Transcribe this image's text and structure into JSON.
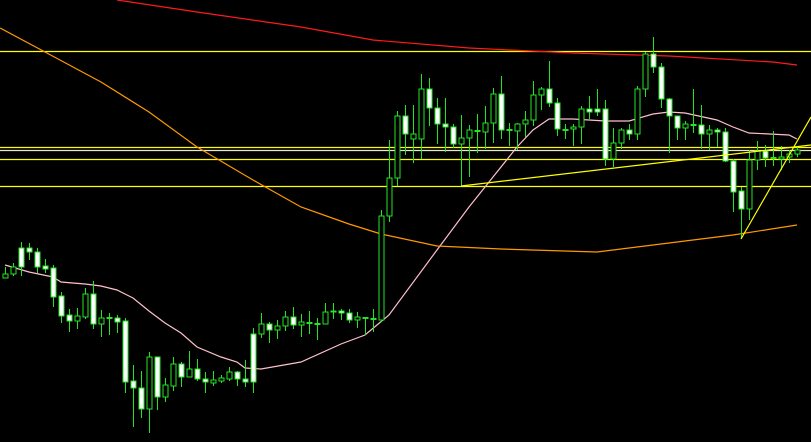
{
  "chart_data": {
    "type": "candlestick",
    "title": "",
    "xlabel": "",
    "ylabel": "",
    "grid": false,
    "ylim": [
      0,
      442
    ],
    "colors": {
      "background": "#000000",
      "candle_outline": "#22e622",
      "bear_body": "#ffffff",
      "bull_body": "#000000",
      "ma_fast": "#ffc0cb",
      "ma_slow": "#ff9900",
      "ma_long": "#ff1a1a",
      "levels": "#ffff00",
      "level_light": "#e8e8c8",
      "trendlines": "#ffff00"
    },
    "candles_ohlc": [
      [
        164,
        175,
        164,
        168
      ],
      [
        168,
        179,
        166,
        175
      ],
      [
        194,
        200,
        166,
        175
      ],
      [
        194,
        199,
        182,
        190
      ],
      [
        190,
        194,
        169,
        175
      ],
      [
        176,
        183,
        169,
        173
      ],
      [
        174,
        177,
        135,
        145
      ],
      [
        146,
        150,
        119,
        126
      ],
      [
        127,
        133,
        110,
        121
      ],
      [
        121,
        134,
        113,
        126
      ],
      [
        125,
        154,
        123,
        148
      ],
      [
        148,
        161,
        113,
        118
      ],
      [
        118,
        132,
        105,
        124
      ],
      [
        124,
        129,
        107,
        124
      ],
      [
        124,
        127,
        109,
        120
      ],
      [
        121,
        124,
        49,
        60
      ],
      [
        61,
        77,
        15,
        54
      ],
      [
        54,
        71,
        24,
        33
      ],
      [
        33,
        90,
        9,
        85
      ],
      [
        85,
        85,
        32,
        45
      ],
      [
        45,
        64,
        40,
        57
      ],
      [
        56,
        85,
        51,
        78
      ],
      [
        78,
        80,
        55,
        65
      ],
      [
        65,
        91,
        65,
        73
      ],
      [
        73,
        83,
        61,
        63
      ],
      [
        63,
        70,
        49,
        60
      ],
      [
        59,
        71,
        56,
        62
      ],
      [
        61,
        67,
        59,
        64
      ],
      [
        63,
        75,
        61,
        70
      ],
      [
        70,
        71,
        56,
        63
      ],
      [
        63,
        82,
        55,
        60
      ],
      [
        108,
        114,
        49,
        60
      ],
      [
        108,
        129,
        104,
        118
      ],
      [
        118,
        120,
        99,
        112
      ],
      [
        112,
        122,
        103,
        116
      ],
      [
        116,
        131,
        111,
        125
      ],
      [
        125,
        135,
        113,
        117
      ],
      [
        117,
        128,
        105,
        120
      ],
      [
        119,
        131,
        108,
        119
      ],
      [
        118,
        124,
        102,
        118
      ],
      [
        118,
        139,
        118,
        130
      ],
      [
        130,
        139,
        123,
        131
      ],
      [
        131,
        133,
        122,
        129
      ],
      [
        129,
        133,
        119,
        122
      ],
      [
        122,
        130,
        114,
        125
      ],
      [
        124,
        124,
        107,
        124
      ],
      [
        123,
        133,
        110,
        123
      ],
      [
        122,
        232,
        120,
        226
      ],
      [
        226,
        302,
        220,
        264
      ],
      [
        264,
        331,
        256,
        326
      ],
      [
        326,
        337,
        287,
        308
      ],
      [
        303,
        337,
        279,
        308
      ],
      [
        303,
        368,
        283,
        353
      ],
      [
        353,
        364,
        316,
        334
      ],
      [
        334,
        344,
        298,
        318
      ],
      [
        318,
        344,
        290,
        315
      ],
      [
        315,
        318,
        294,
        298
      ],
      [
        298,
        327,
        256,
        304
      ],
      [
        304,
        317,
        265,
        312
      ],
      [
        311,
        328,
        289,
        311
      ],
      [
        310,
        336,
        293,
        319
      ],
      [
        319,
        354,
        299,
        348
      ],
      [
        348,
        366,
        303,
        312
      ],
      [
        312,
        319,
        296,
        312
      ],
      [
        311,
        319,
        292,
        318
      ],
      [
        318,
        331,
        305,
        322
      ],
      [
        322,
        361,
        316,
        347
      ],
      [
        347,
        355,
        332,
        353
      ],
      [
        353,
        381,
        335,
        339
      ],
      [
        339,
        344,
        306,
        313
      ],
      [
        312,
        318,
        303,
        312
      ],
      [
        313,
        318,
        296,
        315
      ],
      [
        315,
        336,
        298,
        333
      ],
      [
        333,
        346,
        323,
        330
      ],
      [
        333,
        353,
        326,
        330
      ],
      [
        333,
        342,
        276,
        283
      ],
      [
        283,
        314,
        275,
        299
      ],
      [
        299,
        314,
        293,
        312
      ],
      [
        312,
        318,
        302,
        308
      ],
      [
        308,
        356,
        302,
        353
      ],
      [
        353,
        390,
        345,
        388
      ],
      [
        388,
        405,
        369,
        375
      ],
      [
        375,
        379,
        334,
        343
      ],
      [
        343,
        344,
        289,
        326
      ],
      [
        326,
        326,
        302,
        314
      ],
      [
        314,
        321,
        302,
        318
      ],
      [
        317,
        353,
        309,
        317
      ],
      [
        317,
        337,
        293,
        308
      ],
      [
        308,
        317,
        292,
        312
      ],
      [
        312,
        314,
        295,
        310
      ],
      [
        310,
        314,
        280,
        281
      ],
      [
        281,
        283,
        230,
        250
      ],
      [
        251,
        255,
        204,
        233
      ],
      [
        233,
        292,
        222,
        282
      ],
      [
        282,
        301,
        272,
        291
      ],
      [
        291,
        297,
        275,
        284
      ],
      [
        284,
        311,
        276,
        284
      ],
      [
        283,
        296,
        272,
        285
      ],
      [
        285,
        292,
        279,
        288
      ],
      [
        288,
        295,
        285,
        292
      ]
    ],
    "moving_averages": [
      {
        "role": "ma_fast",
        "points": [
          [
            0,
            177
          ],
          [
            3,
            170
          ],
          [
            6,
            165
          ],
          [
            7,
            160
          ],
          [
            10,
            158
          ],
          [
            12,
            156
          ],
          [
            14,
            152
          ],
          [
            16,
            144
          ],
          [
            18,
            131
          ],
          [
            20,
            119
          ],
          [
            22,
            109
          ],
          [
            24,
            95
          ],
          [
            27,
            85
          ],
          [
            29,
            80
          ],
          [
            30,
            74
          ],
          [
            32,
            73
          ],
          [
            37,
            80
          ],
          [
            42,
            98
          ],
          [
            45,
            107
          ],
          [
            48,
            127
          ],
          [
            54,
            192
          ],
          [
            58,
            235
          ],
          [
            64,
            295
          ],
          [
            66,
            312
          ],
          [
            68,
            323
          ],
          [
            71,
            323
          ],
          [
            75,
            321
          ],
          [
            78,
            321
          ],
          [
            81,
            328
          ],
          [
            83,
            330
          ],
          [
            85,
            329
          ],
          [
            89,
            322
          ],
          [
            91,
            315
          ],
          [
            93,
            309
          ],
          [
            98,
            307
          ],
          [
            99,
            303
          ]
        ]
      },
      {
        "role": "ma_slow",
        "points": [
          [
            -0.6,
            414
          ],
          [
            5,
            390
          ],
          [
            12,
            360
          ],
          [
            18,
            330
          ],
          [
            24,
            295
          ],
          [
            31,
            262
          ],
          [
            37,
            235
          ],
          [
            43,
            218
          ],
          [
            47,
            208
          ],
          [
            54,
            196
          ],
          [
            62,
            193
          ],
          [
            74,
            190
          ],
          [
            83,
            199
          ],
          [
            91,
            207
          ],
          [
            99,
            217
          ]
        ]
      },
      {
        "role": "ma_long",
        "points": [
          [
            14,
            442
          ],
          [
            24,
            430
          ],
          [
            37,
            415
          ],
          [
            46,
            402
          ],
          [
            58,
            394
          ],
          [
            71,
            389
          ],
          [
            83,
            386
          ],
          [
            96,
            380
          ],
          [
            99,
            377
          ]
        ]
      }
    ],
    "horizontal_levels": [
      {
        "value": 391,
        "style": "levels"
      },
      {
        "value": 295,
        "style": "levels"
      },
      {
        "value": 292,
        "style": "level_light"
      },
      {
        "value": 283,
        "style": "levels"
      },
      {
        "value": 256,
        "style": "levels"
      }
    ],
    "trendlines": [
      {
        "from": [
          57,
          256
        ],
        "to": [
          100.75,
          297
        ]
      },
      {
        "from": [
          92,
          203
        ],
        "to": [
          100.75,
          325
        ]
      }
    ]
  }
}
